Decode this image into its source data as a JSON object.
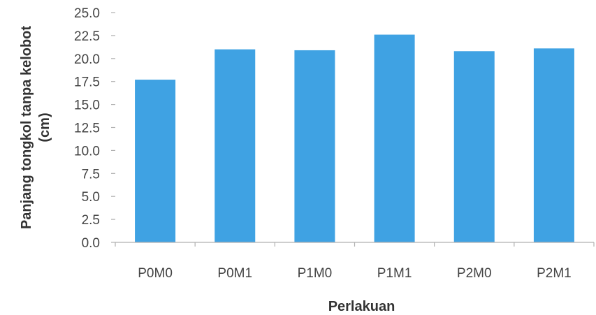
{
  "chart_data": {
    "type": "bar",
    "categories": [
      "P0M0",
      "P0M1",
      "P1M0",
      "P1M1",
      "P2M0",
      "P2M1"
    ],
    "values": [
      17.7,
      21.0,
      20.9,
      22.6,
      20.8,
      21.1
    ],
    "title": "",
    "xlabel": "Perlakuan",
    "ylabel_line1": "Panjang tongkol tanpa kelobot",
    "ylabel_line2": "(cm)",
    "ylim": [
      0,
      25
    ],
    "yticks": [
      "0.0",
      "2.5",
      "5.0",
      "7.5",
      "10.0",
      "12.5",
      "15.0",
      "17.5",
      "20.0",
      "22.5",
      "25.0"
    ],
    "grid": false,
    "legend": "none",
    "bar_color": "#3fa2e3"
  }
}
